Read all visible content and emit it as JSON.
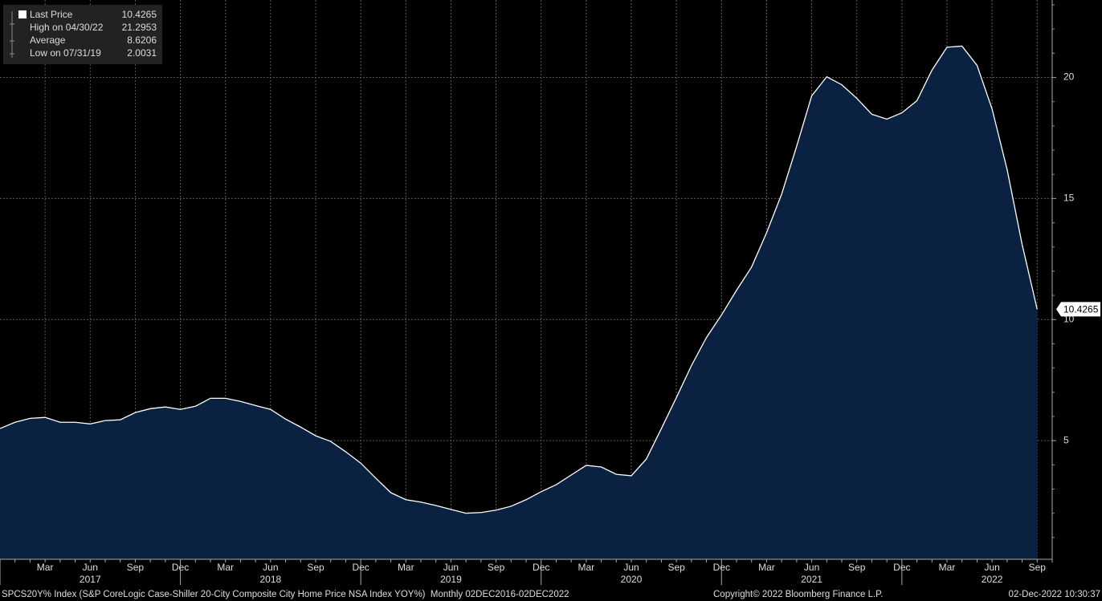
{
  "chart_data": {
    "type": "area",
    "series": [
      {
        "name": "Last Price",
        "color": "#ffffff",
        "fill": "#0b2142",
        "x": [
          "2016-12",
          "2017-01",
          "2017-02",
          "2017-03",
          "2017-04",
          "2017-05",
          "2017-06",
          "2017-07",
          "2017-08",
          "2017-09",
          "2017-10",
          "2017-11",
          "2017-12",
          "2018-01",
          "2018-02",
          "2018-03",
          "2018-04",
          "2018-05",
          "2018-06",
          "2018-07",
          "2018-08",
          "2018-09",
          "2018-10",
          "2018-11",
          "2018-12",
          "2019-01",
          "2019-02",
          "2019-03",
          "2019-04",
          "2019-05",
          "2019-06",
          "2019-07",
          "2019-08",
          "2019-09",
          "2019-10",
          "2019-11",
          "2019-12",
          "2020-01",
          "2020-02",
          "2020-03",
          "2020-04",
          "2020-05",
          "2020-06",
          "2020-07",
          "2020-08",
          "2020-09",
          "2020-10",
          "2020-11",
          "2020-12",
          "2021-01",
          "2021-02",
          "2021-03",
          "2021-04",
          "2021-05",
          "2021-06",
          "2021-07",
          "2021-08",
          "2021-09",
          "2021-10",
          "2021-11",
          "2021-12",
          "2022-01",
          "2022-02",
          "2022-03",
          "2022-04",
          "2022-05",
          "2022-06",
          "2022-07",
          "2022-08",
          "2022-09"
        ],
        "values": [
          5.5,
          5.76,
          5.92,
          5.96,
          5.76,
          5.76,
          5.69,
          5.83,
          5.86,
          6.16,
          6.32,
          6.39,
          6.29,
          6.42,
          6.75,
          6.75,
          6.62,
          6.45,
          6.29,
          5.89,
          5.56,
          5.2,
          4.97,
          4.54,
          4.07,
          3.45,
          2.85,
          2.56,
          2.46,
          2.32,
          2.16,
          2.0031,
          2.03,
          2.13,
          2.29,
          2.56,
          2.89,
          3.18,
          3.58,
          3.98,
          3.91,
          3.61,
          3.55,
          4.24,
          5.5,
          6.78,
          8.1,
          9.26,
          10.19,
          11.21,
          12.17,
          13.59,
          15.18,
          17.16,
          19.24,
          20.03,
          19.7,
          19.14,
          18.48,
          18.28,
          18.54,
          19.04,
          20.3,
          21.25,
          21.2953,
          20.5,
          18.7,
          16.2,
          13.1,
          10.4265
        ]
      }
    ],
    "last_value_label": "10.4265",
    "stats": [
      {
        "label": "Last Price",
        "value": "10.4265"
      },
      {
        "label": "High on 04/30/22",
        "value": "21.2953"
      },
      {
        "label": "Average",
        "value": "8.6206"
      },
      {
        "label": "Low on 07/31/19",
        "value": "2.0031"
      }
    ],
    "ylim": [
      0.1,
      23.2
    ],
    "yticks": [
      5,
      10,
      15,
      20
    ],
    "xlim": [
      "2016-12",
      "2022-10"
    ],
    "xticks": [
      {
        "value": "2017-03",
        "label": "Mar"
      },
      {
        "value": "2017-06",
        "label": "Jun"
      },
      {
        "value": "2017-09",
        "label": "Sep"
      },
      {
        "value": "2017-12",
        "label": "Dec"
      },
      {
        "value": "2018-03",
        "label": "Mar"
      },
      {
        "value": "2018-06",
        "label": "Jun"
      },
      {
        "value": "2018-09",
        "label": "Sep"
      },
      {
        "value": "2018-12",
        "label": "Dec"
      },
      {
        "value": "2019-03",
        "label": "Mar"
      },
      {
        "value": "2019-06",
        "label": "Jun"
      },
      {
        "value": "2019-09",
        "label": "Sep"
      },
      {
        "value": "2019-12",
        "label": "Dec"
      },
      {
        "value": "2020-03",
        "label": "Mar"
      },
      {
        "value": "2020-06",
        "label": "Jun"
      },
      {
        "value": "2020-09",
        "label": "Sep"
      },
      {
        "value": "2020-12",
        "label": "Dec"
      },
      {
        "value": "2021-03",
        "label": "Mar"
      },
      {
        "value": "2021-06",
        "label": "Jun"
      },
      {
        "value": "2021-09",
        "label": "Sep"
      },
      {
        "value": "2021-12",
        "label": "Dec"
      },
      {
        "value": "2022-03",
        "label": "Mar"
      },
      {
        "value": "2022-06",
        "label": "Jun"
      },
      {
        "value": "2022-09",
        "label": "Sep"
      }
    ],
    "year_labels": [
      {
        "value": "2017-06",
        "label": "2017"
      },
      {
        "value": "2018-06",
        "label": "2018"
      },
      {
        "value": "2019-06",
        "label": "2019"
      },
      {
        "value": "2020-06",
        "label": "2020"
      },
      {
        "value": "2021-06",
        "label": "2021"
      },
      {
        "value": "2022-06",
        "label": "2022"
      }
    ],
    "grid": true,
    "footer": {
      "description": "SPCS20Y% Index (S&P CoreLogic Case-Shiller 20-City Composite City Home Price NSA Index YOY%)  Monthly 02DEC2016-02DEC2022",
      "copyright": "Copyright© 2022 Bloomberg Finance L.P.",
      "timestamp": "02-Dec-2022 10:30:37"
    }
  }
}
